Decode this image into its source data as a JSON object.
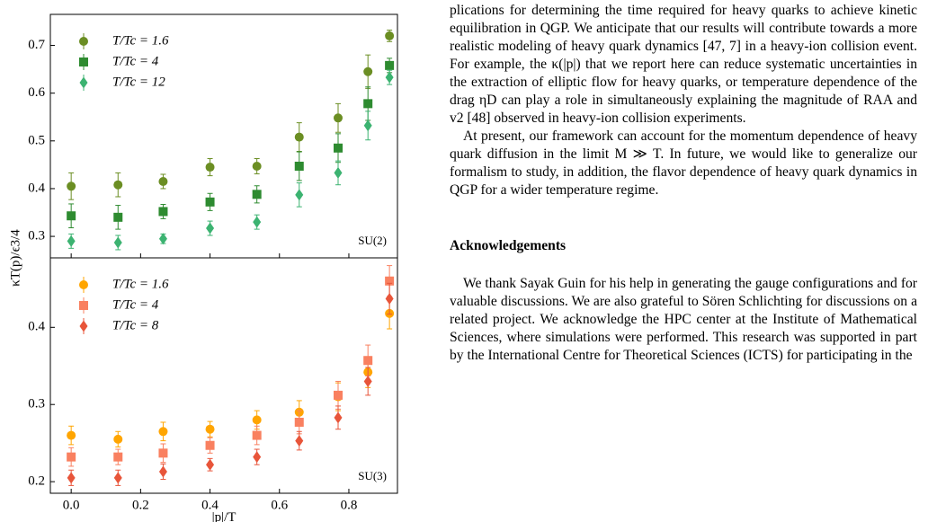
{
  "chart_data": [
    {
      "type": "scatter",
      "label": "SU(2)",
      "ylabel": "κT(p)/ϵ3/4",
      "x": [
        0.0,
        0.135,
        0.265,
        0.4,
        0.535,
        0.657,
        0.769,
        0.855,
        0.917
      ],
      "xlim": [
        -0.06,
        0.94
      ],
      "xticks": [
        {
          "value": 0,
          "label": "0.0"
        },
        0.2,
        0.4,
        0.6,
        0.8
      ],
      "ylim": [
        0.255,
        0.765
      ],
      "yticks": [
        0.3,
        0.4,
        0.5,
        0.6,
        0.7
      ],
      "series": [
        {
          "name": "T/Tc = 1.6",
          "color": "#6b8e23",
          "marker": "circle",
          "values": [
            0.405,
            0.408,
            0.415,
            0.445,
            0.447,
            0.508,
            0.548,
            0.645,
            0.72
          ],
          "errors": [
            0.028,
            0.025,
            0.015,
            0.018,
            0.016,
            0.03,
            0.03,
            0.035,
            0.012
          ]
        },
        {
          "name": "T/Tc = 4",
          "color": "#2e8b30",
          "marker": "square",
          "values": [
            0.343,
            0.34,
            0.352,
            0.372,
            0.388,
            0.447,
            0.485,
            0.578,
            0.658
          ],
          "errors": [
            0.025,
            0.025,
            0.015,
            0.018,
            0.018,
            0.03,
            0.03,
            0.035,
            0.015
          ]
        },
        {
          "name": "T/Tc = 12",
          "color": "#3cb371",
          "marker": "diamond",
          "values": [
            0.29,
            0.287,
            0.295,
            0.317,
            0.33,
            0.387,
            0.433,
            0.532,
            0.633
          ],
          "errors": [
            0.015,
            0.015,
            0.01,
            0.015,
            0.015,
            0.025,
            0.025,
            0.03,
            0.015
          ]
        }
      ]
    },
    {
      "type": "scatter",
      "label": "SU(3)",
      "xlabel": "|p|/T",
      "x": [
        0.0,
        0.135,
        0.265,
        0.4,
        0.535,
        0.657,
        0.769,
        0.855,
        0.917
      ],
      "xlim": [
        -0.06,
        0.94
      ],
      "xticks": [
        {
          "value": 0,
          "label": "0.0"
        },
        0.2,
        0.4,
        0.6,
        0.8
      ],
      "ylim": [
        0.185,
        0.49
      ],
      "yticks": [
        0.2,
        0.3,
        0.4
      ],
      "series": [
        {
          "name": "T/Tc = 1.6",
          "color": "#ffa500",
          "marker": "circle",
          "values": [
            0.26,
            0.255,
            0.265,
            0.268,
            0.28,
            0.29,
            0.31,
            0.342,
            0.418
          ],
          "errors": [
            0.012,
            0.01,
            0.012,
            0.01,
            0.012,
            0.015,
            0.018,
            0.02,
            0.02
          ]
        },
        {
          "name": "T/Tc = 4",
          "color": "#f98060",
          "marker": "square",
          "values": [
            0.232,
            0.232,
            0.237,
            0.247,
            0.26,
            0.277,
            0.312,
            0.357,
            0.46
          ],
          "errors": [
            0.012,
            0.01,
            0.012,
            0.01,
            0.012,
            0.015,
            0.018,
            0.02,
            0.02
          ]
        },
        {
          "name": "T/Tc = 8",
          "color": "#e8553a",
          "marker": "diamond",
          "values": [
            0.205,
            0.205,
            0.213,
            0.222,
            0.232,
            0.253,
            0.283,
            0.33,
            0.437
          ],
          "errors": [
            0.01,
            0.01,
            0.01,
            0.008,
            0.01,
            0.012,
            0.015,
            0.018,
            0.02
          ]
        }
      ]
    }
  ],
  "text": {
    "paragraphs": [
      "plications for determining the time required for heavy quarks to achieve kinetic equilibration in QGP. We anticipate that our results will contribute towards a more realistic modeling of heavy quark dynamics [47, 7] in a heavy-ion collision event. For example, the κ(|p|) that we report here can reduce systematic uncertainties in the extraction of elliptic flow for heavy quarks, or temperature dependence of the drag ηD can play a role in simultaneously explaining the magnitude of RAA and v2 [48] observed in heavy-ion collision experiments.",
      "At present, our framework can account for the momentum dependence of heavy quark diffusion in the limit M ≫ T. In future, we would like to generalize our formalism to study, in addition, the flavor dependence of heavy quark dynamics in QGP for a wider temperature regime."
    ],
    "heading": "Acknowledgements",
    "acknowledgements": "We thank Sayak Guin for his help in generating the gauge configurations and for valuable discussions. We are also grateful to Sören Schlichting for discussions on a related project. We acknowledge the HPC center at the Institute of Mathematical Sciences, where simulations were performed. This research was supported in part by the International Centre for Theoretical Sciences (ICTS) for participating in the"
  }
}
